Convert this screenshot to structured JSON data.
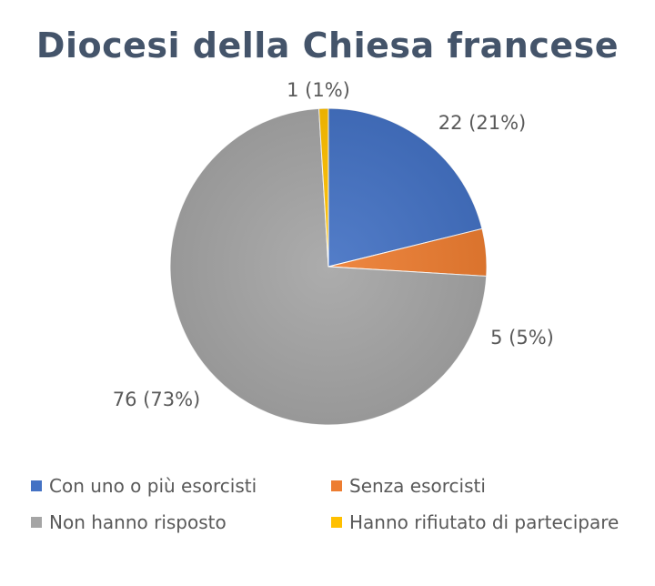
{
  "chart_data": {
    "type": "pie",
    "title": "Diocesi della Chiesa francese",
    "slices": [
      {
        "name": "Con uno o più esorcisti",
        "value": 22,
        "label": "22 (21%)",
        "color": "#4472c4"
      },
      {
        "name": "Senza esorcisti",
        "value": 5,
        "label": "5 (5%)",
        "color": "#ed7d31"
      },
      {
        "name": "Non hanno risposto",
        "value": 76,
        "label": "76 (73%)",
        "color": "#a5a5a5"
      },
      {
        "name": "Hanno rifiutato di partecipare",
        "value": 1,
        "label": "1 (1%)",
        "color": "#ffc000"
      }
    ],
    "legend_position": "bottom"
  }
}
